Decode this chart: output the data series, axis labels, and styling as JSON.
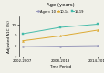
{
  "title": "Age (years)",
  "xlabel": "Time Period",
  "ylabel": "Adjusted A1C (%)",
  "x_labels": [
    "2002-2007",
    "2008-2013",
    "2014-2019"
  ],
  "x_positions": [
    0,
    1,
    2
  ],
  "series": [
    {
      "label": "Age < 10",
      "color": "#9999bb",
      "values": [
        7.95,
        8.0,
        8.05
      ],
      "marker": "o"
    },
    {
      "label": "10-14",
      "color": "#ddaa33",
      "values": [
        8.5,
        8.95,
        9.5
      ],
      "marker": "^"
    },
    {
      "label": "15-19",
      "color": "#44bbaa",
      "values": [
        9.15,
        9.75,
        10.05
      ],
      "marker": "s"
    }
  ],
  "ylim": [
    7.0,
    10.8
  ],
  "yticks": [
    7,
    8,
    9,
    10
  ],
  "background_color": "#f0f0e8",
  "title_fontsize": 3.8,
  "axis_label_fontsize": 3.0,
  "tick_fontsize": 2.8,
  "legend_fontsize": 2.6,
  "linewidth": 0.7,
  "markersize": 1.5
}
